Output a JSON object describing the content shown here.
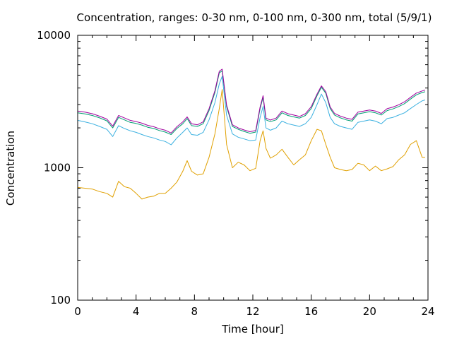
{
  "chart_data": {
    "type": "line",
    "title": "Concentration, ranges: 0-30 nm, 0-100 nm, 0-300 nm, total (5/9/1)",
    "xlabel": "Time [hour]",
    "ylabel": "Concentration",
    "xlim": [
      0,
      24
    ],
    "ylim": [
      100,
      10000
    ],
    "yscale": "log",
    "grid": false,
    "legend": "none",
    "x_ticks": [
      "0",
      "4",
      "8",
      "12",
      "16",
      "20",
      "24"
    ],
    "x_tick_values": [
      0,
      4,
      8,
      12,
      16,
      20,
      24
    ],
    "y_ticks": [
      "100",
      "1000",
      "10000"
    ],
    "y_tick_values": [
      100,
      1000,
      10000
    ],
    "x": [
      0,
      0.5,
      1,
      1.5,
      2,
      2.4,
      2.8,
      3.2,
      3.6,
      4,
      4.4,
      4.8,
      5.2,
      5.6,
      6,
      6.4,
      6.8,
      7.2,
      7.5,
      7.8,
      8.2,
      8.6,
      9,
      9.4,
      9.7,
      9.9,
      10.2,
      10.6,
      11,
      11.4,
      11.8,
      12.2,
      12.5,
      12.7,
      12.9,
      13.2,
      13.6,
      14,
      14.4,
      14.8,
      15.2,
      15.6,
      16,
      16.4,
      16.7,
      17,
      17.3,
      17.6,
      18,
      18.4,
      18.8,
      19.2,
      19.6,
      20,
      20.4,
      20.8,
      21.2,
      21.6,
      22,
      22.4,
      22.8,
      23.2,
      23.6,
      23.8
    ],
    "series": [
      {
        "values": [
          710,
          700,
          690,
          660,
          640,
          600,
          790,
          720,
          700,
          640,
          580,
          600,
          610,
          640,
          640,
          700,
          780,
          940,
          1130,
          940,
          880,
          900,
          1200,
          1800,
          2800,
          3900,
          1500,
          1000,
          1100,
          1050,
          950,
          990,
          1600,
          1900,
          1400,
          1180,
          1250,
          1380,
          1200,
          1050,
          1150,
          1250,
          1600,
          1950,
          1900,
          1500,
          1200,
          1000,
          970,
          950,
          970,
          1080,
          1050,
          950,
          1030,
          950,
          980,
          1020,
          1150,
          1250,
          1500,
          1600,
          1200,
          1200
        ]
      },
      {
        "values": [
          2280,
          2220,
          2150,
          2050,
          1950,
          1720,
          2080,
          1980,
          1900,
          1850,
          1780,
          1720,
          1680,
          1620,
          1580,
          1490,
          1680,
          1850,
          2000,
          1780,
          1760,
          1850,
          2300,
          3100,
          4300,
          4900,
          2500,
          1800,
          1700,
          1650,
          1600,
          1620,
          2400,
          2900,
          2000,
          1920,
          2000,
          2250,
          2150,
          2100,
          2050,
          2150,
          2400,
          3000,
          3600,
          3100,
          2400,
          2150,
          2050,
          2000,
          1950,
          2200,
          2250,
          2300,
          2250,
          2150,
          2350,
          2400,
          2500,
          2600,
          2800,
          3000,
          3200,
          3250
        ]
      },
      {
        "values": [
          2600,
          2550,
          2480,
          2380,
          2260,
          2000,
          2400,
          2300,
          2200,
          2160,
          2100,
          2020,
          1980,
          1910,
          1860,
          1780,
          1980,
          2150,
          2350,
          2080,
          2050,
          2150,
          2700,
          3700,
          5200,
          5400,
          2900,
          2050,
          1950,
          1880,
          1820,
          1860,
          2800,
          3400,
          2300,
          2230,
          2300,
          2600,
          2480,
          2420,
          2370,
          2480,
          2800,
          3500,
          4050,
          3650,
          2800,
          2500,
          2380,
          2300,
          2250,
          2550,
          2600,
          2650,
          2600,
          2500,
          2700,
          2780,
          2900,
          3050,
          3300,
          3550,
          3700,
          3750
        ]
      },
      {
        "values": [
          2680,
          2630,
          2560,
          2450,
          2330,
          2060,
          2480,
          2380,
          2280,
          2230,
          2170,
          2090,
          2040,
          1970,
          1920,
          1830,
          2040,
          2220,
          2420,
          2150,
          2110,
          2220,
          2790,
          3820,
          5350,
          5550,
          2980,
          2110,
          2000,
          1930,
          1870,
          1910,
          2880,
          3500,
          2370,
          2290,
          2370,
          2680,
          2560,
          2500,
          2440,
          2560,
          2890,
          3600,
          4150,
          3750,
          2880,
          2570,
          2450,
          2370,
          2320,
          2630,
          2680,
          2730,
          2680,
          2570,
          2790,
          2870,
          2990,
          3150,
          3400,
          3660,
          3800,
          3860
        ]
      }
    ],
    "colors": [
      "#e0a000",
      "#3ab0e0",
      "#009e73",
      "#a0009e"
    ]
  }
}
